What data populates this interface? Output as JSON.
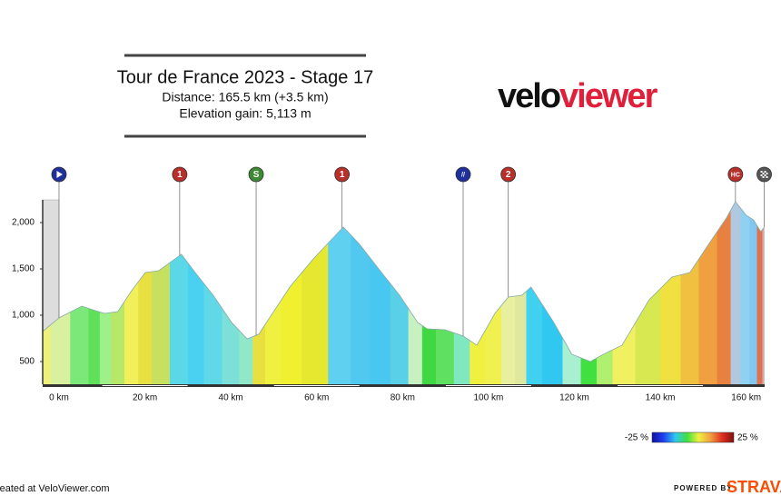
{
  "header": {
    "title": "Tour de France 2023 - Stage 17",
    "distance": "Distance: 165.5 km (+3.5 km)",
    "elevation_gain": "Elevation gain: 5,113 m",
    "logo_a": "velo",
    "logo_b": "viewer"
  },
  "chart_data": {
    "type": "elevation-profile",
    "x": [
      -3.8,
      0,
      5.3,
      8.5,
      10.6,
      13.7,
      16.9,
      20.1,
      23.2,
      28.5,
      31.7,
      35.9,
      40.2,
      43.8,
      46.5,
      49.7,
      53.9,
      59.2,
      66.2,
      69.8,
      75.1,
      79.3,
      83.5,
      85.7,
      89.9,
      94.1,
      97.3,
      101.5,
      104.6,
      107.8,
      109.9,
      115.2,
      119.4,
      123.7,
      126.8,
      131.1,
      137.4,
      142.7,
      146.9,
      151.1,
      155.4,
      157.5,
      160,
      161.7,
      163.4,
      164.2
    ],
    "values": [
      824,
      971,
      1098,
      1049,
      1020,
      1039,
      1265,
      1461,
      1480,
      1657,
      1461,
      1216,
      922,
      745,
      794,
      1020,
      1314,
      1608,
      1951,
      1775,
      1461,
      1216,
      922,
      853,
      843,
      775,
      677,
      1020,
      1196,
      1216,
      1304,
      922,
      579,
      500,
      579,
      677,
      1167,
      1412,
      1461,
      1755,
      2049,
      2226,
      2079,
      2029,
      1902,
      1951
    ],
    "colors": [
      "#eef07a",
      "#d9f0a0",
      "#7de87a",
      "#5ee05a",
      "#9ef08a",
      "#b8e86a",
      "#f2f05a",
      "#e8e040",
      "#c8e060",
      "#5ad8e8",
      "#4ad0f0",
      "#60d8e8",
      "#7ce0d8",
      "#90e8c8",
      "#e8e040",
      "#f0f040",
      "#f0f030",
      "#e6e830",
      "#60d0f0",
      "#50c8f0",
      "#48c8f0",
      "#5ad0e8",
      "#c8f0c0",
      "#40d840",
      "#60e060",
      "#80e8c0",
      "#f0f040",
      "#f0f050",
      "#e8f0a0",
      "#e0e8a0",
      "#40d0f0",
      "#30c8f0",
      "#a8f0d0",
      "#40e040",
      "#b0f070",
      "#f0f060",
      "#d8e850",
      "#f0e040",
      "#f0c040",
      "#f0a040",
      "#e88040",
      "#b0c8e0",
      "#90d0f0",
      "#80c8f0",
      "#e07050",
      "#c8b0b0"
    ],
    "xlim": [
      -3.8,
      164.3
    ],
    "ylim": [
      255,
      2245
    ],
    "xticks": [
      {
        "value": 0,
        "label": "0 km"
      },
      {
        "value": 20,
        "label": "20 km"
      },
      {
        "value": 40,
        "label": "40 km"
      },
      {
        "value": 60,
        "label": "60 km"
      },
      {
        "value": 80,
        "label": "80 km"
      },
      {
        "value": 100,
        "label": "100 km"
      },
      {
        "value": 120,
        "label": "120 km"
      },
      {
        "value": 140,
        "label": "140 km"
      },
      {
        "value": 160,
        "label": "160 km"
      }
    ],
    "yticks": [
      500,
      {
        "value": 1000,
        "label": "1,000"
      },
      {
        "value": 1500,
        "label": "1,500"
      },
      {
        "value": 2000,
        "label": "2,000"
      }
    ],
    "markers": [
      {
        "x": 0,
        "color": "#1f2f9c"
      },
      {
        "x": 28.1,
        "label": "1",
        "color": "#b8302a"
      },
      {
        "x": 45.9,
        "label": "S",
        "color": "#3c8a32"
      },
      {
        "x": 65.9,
        "label": "1",
        "color": "#b8302a"
      },
      {
        "x": 94.1,
        "label": "//",
        "color": "#1f2f9c"
      },
      {
        "x": 104.6,
        "label": "2",
        "color": "#b8302a"
      },
      {
        "x": 157.5,
        "label": "HC",
        "color": "#b8302a"
      },
      {
        "x": 164.2,
        "color": "#555555"
      }
    ],
    "legend": {
      "min_label": "-25 %",
      "max_label": "25 %",
      "colors": [
        "#1010a0",
        "#2040f0",
        "#30c8f0",
        "#40e040",
        "#f0f040",
        "#f0a040",
        "#e03020",
        "#801010"
      ]
    }
  },
  "footer": {
    "credit": "Created at VeloViewer.com",
    "powered": "POWERED BY",
    "brand": "STRAVA"
  }
}
